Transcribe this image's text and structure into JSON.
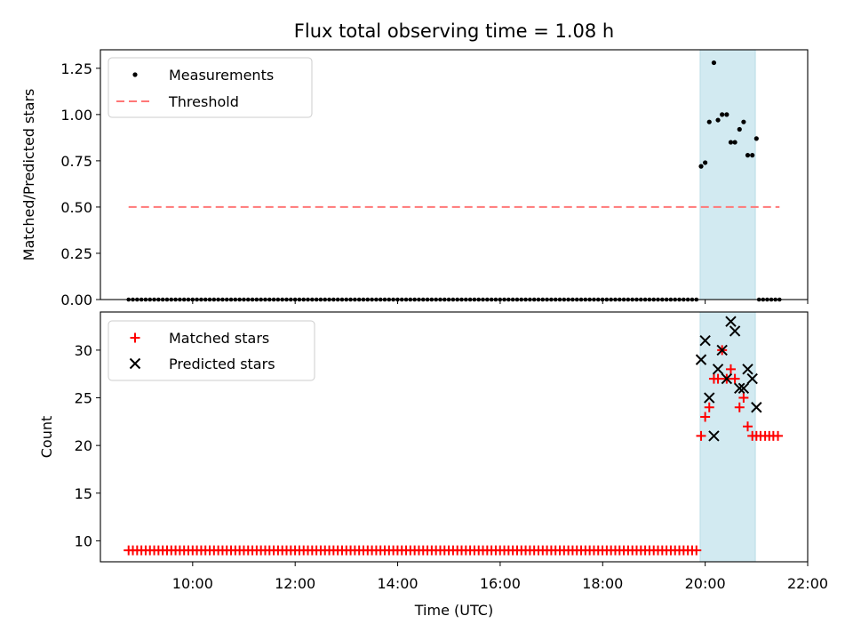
{
  "title": "Flux total observing time = 1.08 h",
  "chart_data": [
    {
      "type": "scatter",
      "panel": "top",
      "ylabel": "Matched/Predicted stars",
      "xlim": [
        8.2,
        22.0
      ],
      "ylim": [
        0.0,
        1.35
      ],
      "yticks": [
        0.0,
        0.25,
        0.5,
        0.75,
        1.0,
        1.25
      ],
      "ytick_labels": [
        "0.00",
        "0.25",
        "0.50",
        "0.75",
        "1.00",
        "1.25"
      ],
      "highlight_span": {
        "x0": 19.9,
        "x1": 20.98,
        "color": "#add8e6"
      },
      "threshold": {
        "name": "Threshold",
        "y": 0.5,
        "x0": 8.75,
        "x1": 21.45,
        "color": "#ff7777"
      },
      "zero_series": {
        "name": "Measurements (zero)",
        "x_start": 8.75,
        "x_end": 19.9,
        "step": 0.0833,
        "y": 0
      },
      "zero_series_after": {
        "x": [
          21.05,
          21.13,
          21.21,
          21.29,
          21.37,
          21.45
        ],
        "y": [
          0,
          0,
          0,
          0,
          0,
          0
        ]
      },
      "series": [
        {
          "name": "Measurements",
          "x": [
            19.92,
            20.0,
            20.08,
            20.17,
            20.25,
            20.33,
            20.42,
            20.5,
            20.58,
            20.67,
            20.75,
            20.83,
            20.92,
            21.0
          ],
          "y": [
            0.72,
            0.74,
            0.96,
            1.28,
            0.97,
            1.0,
            1.0,
            0.85,
            0.85,
            0.92,
            0.96,
            0.78,
            0.78,
            0.87
          ]
        }
      ],
      "legend": {
        "location": "top-left",
        "entries": [
          "Measurements",
          "Threshold"
        ]
      }
    },
    {
      "type": "scatter",
      "panel": "bottom",
      "xlabel": "Time (UTC)",
      "ylabel": "Count",
      "xlim": [
        8.2,
        22.0
      ],
      "ylim": [
        7.8,
        34.0
      ],
      "xticks": [
        10,
        12,
        14,
        16,
        18,
        20,
        22
      ],
      "xtick_labels": [
        "10:00",
        "12:00",
        "14:00",
        "16:00",
        "18:00",
        "20:00",
        "22:00"
      ],
      "yticks": [
        10,
        15,
        20,
        25,
        30
      ],
      "ytick_labels": [
        "10",
        "15",
        "20",
        "25",
        "30"
      ],
      "highlight_span": {
        "x0": 19.9,
        "x1": 20.98,
        "color": "#add8e6"
      },
      "matched_baseline": {
        "name": "Matched stars (baseline)",
        "x_start": 8.75,
        "x_end": 19.9,
        "step": 0.0833,
        "y": 9
      },
      "series": [
        {
          "name": "Matched stars",
          "marker": "plus",
          "color": "#ff0000",
          "x": [
            19.92,
            20.0,
            20.08,
            20.17,
            20.25,
            20.33,
            20.42,
            20.5,
            20.58,
            20.67,
            20.75,
            20.83,
            20.92,
            21.0,
            21.08,
            21.17,
            21.25,
            21.33,
            21.42
          ],
          "y": [
            21,
            23,
            24,
            27,
            27,
            30,
            27,
            28,
            27,
            24,
            25,
            22,
            21,
            21,
            21,
            21,
            21,
            21,
            21
          ]
        },
        {
          "name": "Predicted stars",
          "marker": "x",
          "color": "#000000",
          "x": [
            19.92,
            20.0,
            20.08,
            20.17,
            20.25,
            20.33,
            20.42,
            20.5,
            20.58,
            20.67,
            20.75,
            20.83,
            20.92,
            21.0
          ],
          "y": [
            29,
            31,
            25,
            21,
            28,
            30,
            27,
            33,
            32,
            26,
            26,
            28,
            27,
            24
          ]
        }
      ],
      "legend": {
        "location": "top-left",
        "entries": [
          "Matched stars",
          "Predicted stars"
        ]
      }
    }
  ]
}
